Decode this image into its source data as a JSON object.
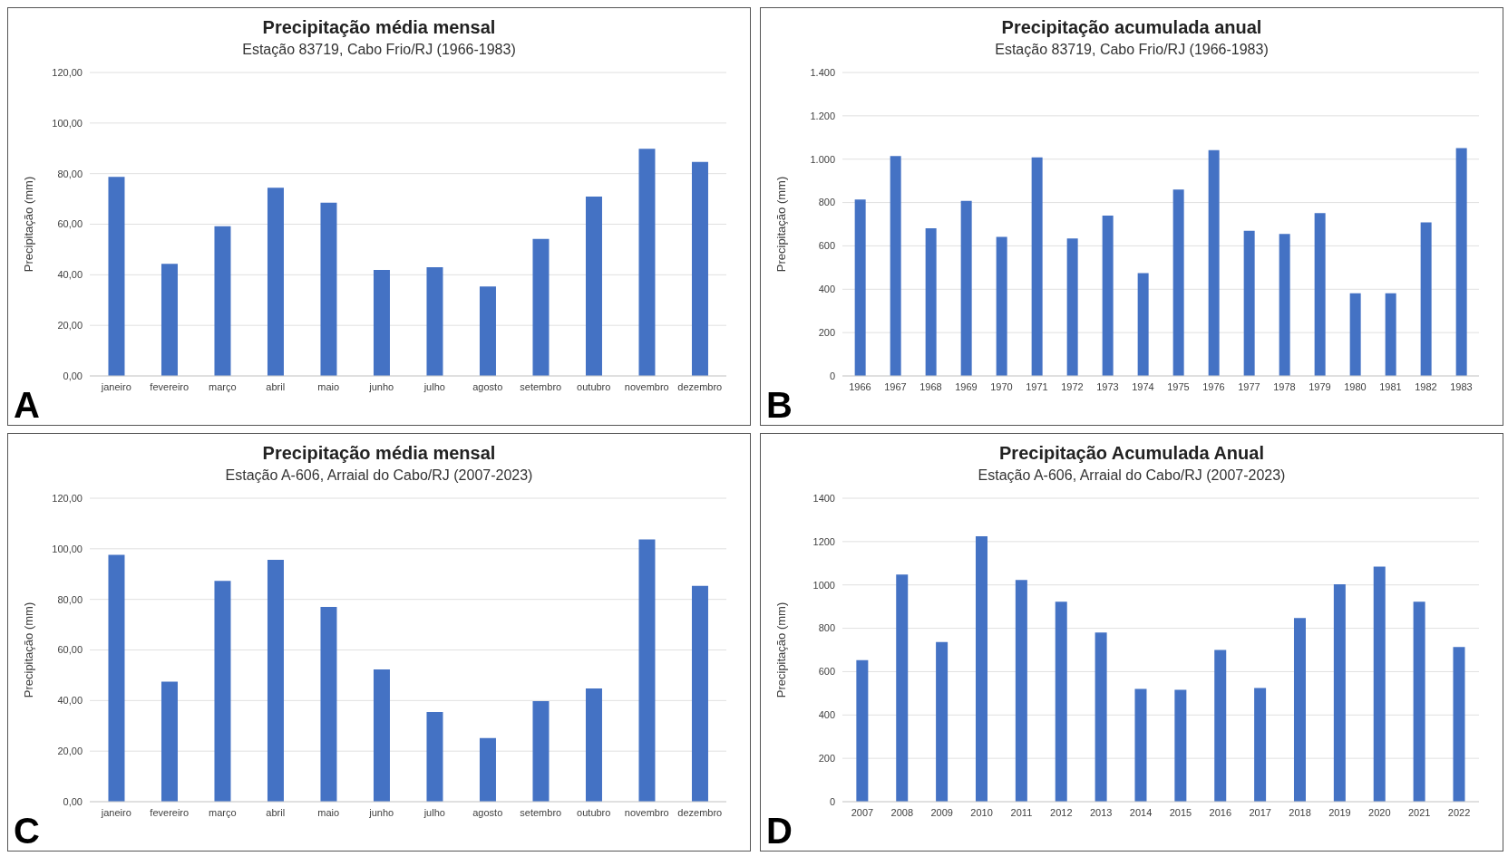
{
  "chart_data": [
    {
      "type": "bar",
      "title": "Precipitação média mensal",
      "subtitle": "Estação 83719, Cabo Frio/RJ (1966-1983)",
      "ylabel": "Precipitação (mm)",
      "annotations": [
        "A"
      ],
      "categories": [
        "janeiro",
        "fevereiro",
        "março",
        "abril",
        "maio",
        "junho",
        "julho",
        "agosto",
        "setembro",
        "outubro",
        "novembro",
        "dezembro"
      ],
      "values": [
        78.7,
        44.3,
        59.2,
        74.4,
        68.5,
        41.9,
        43.0,
        35.4,
        54.2,
        70.9,
        89.8,
        84.6
      ],
      "color": "#4472c4",
      "ylim": [
        0,
        120
      ],
      "yticks": [
        {
          "value": 0,
          "label": "0,00"
        },
        {
          "value": 20,
          "label": "20,00"
        },
        {
          "value": 40,
          "label": "40,00"
        },
        {
          "value": 60,
          "label": "60,00"
        },
        {
          "value": 80,
          "label": "80,00"
        },
        {
          "value": 100,
          "label": "100,00"
        },
        {
          "value": 120,
          "label": "120,00"
        }
      ],
      "grid": "y"
    },
    {
      "type": "bar",
      "title": "Precipitação acumulada anual",
      "subtitle": "Estação 83719, Cabo Frio/RJ (1966-1983)",
      "ylabel": "Precipitação (mm)",
      "annotations": [
        "B"
      ],
      "categories": [
        "1966",
        "1967",
        "1968",
        "1969",
        "1970",
        "1971",
        "1972",
        "1973",
        "1974",
        "1975",
        "1976",
        "1977",
        "1978",
        "1979",
        "1980",
        "1981",
        "1982",
        "1983"
      ],
      "values": [
        814,
        1015,
        681,
        808,
        641,
        1008,
        634,
        740,
        474,
        860,
        1042,
        670,
        655,
        751,
        381,
        381,
        708,
        1051
      ],
      "color": "#4472c4",
      "ylim": [
        0,
        1400
      ],
      "yticks": [
        0,
        200,
        400,
        600,
        800,
        {
          "value": 1000,
          "label": "1.000"
        },
        {
          "value": 1200,
          "label": "1.200"
        },
        {
          "value": 1400,
          "label": "1.400"
        }
      ],
      "grid": "y"
    },
    {
      "type": "bar",
      "title": "Precipitação média mensal",
      "subtitle": "Estação A-606, Arraial do Cabo/RJ (2007-2023)",
      "ylabel": "Precipitação (mm)",
      "annotations": [
        "C"
      ],
      "categories": [
        "janeiro",
        "fevereiro",
        "março",
        "abril",
        "maio",
        "junho",
        "julho",
        "agosto",
        "setembro",
        "outubro",
        "novembro",
        "dezembro"
      ],
      "values": [
        97.6,
        47.5,
        87.3,
        95.6,
        77.0,
        52.3,
        35.5,
        25.2,
        39.8,
        44.8,
        103.7,
        85.3
      ],
      "color": "#4472c4",
      "ylim": [
        0,
        120
      ],
      "yticks": [
        {
          "value": 0,
          "label": "0,00"
        },
        {
          "value": 20,
          "label": "20,00"
        },
        {
          "value": 40,
          "label": "40,00"
        },
        {
          "value": 60,
          "label": "60,00"
        },
        {
          "value": 80,
          "label": "80,00"
        },
        {
          "value": 100,
          "label": "100,00"
        },
        {
          "value": 120,
          "label": "120,00"
        }
      ],
      "grid": "y"
    },
    {
      "type": "bar",
      "title": "Precipitação Acumulada Anual",
      "subtitle": "Estação A-606, Arraial do Cabo/RJ (2007-2023)",
      "ylabel": "Precipitação (mm)",
      "annotations": [
        "D"
      ],
      "categories": [
        "2007",
        "2008",
        "2009",
        "2010",
        "2011",
        "2012",
        "2013",
        "2014",
        "2015",
        "2016",
        "2017",
        "2018",
        "2019",
        "2020",
        "2021",
        "2022"
      ],
      "values": [
        653,
        1048,
        737,
        1224,
        1023,
        923,
        780,
        520,
        516,
        700,
        524,
        847,
        1003,
        1085,
        923,
        714
      ],
      "color": "#4472c4",
      "ylim": [
        0,
        1400
      ],
      "yticks": [
        0,
        200,
        400,
        600,
        800,
        1000,
        1200,
        1400
      ],
      "grid": "y"
    }
  ]
}
